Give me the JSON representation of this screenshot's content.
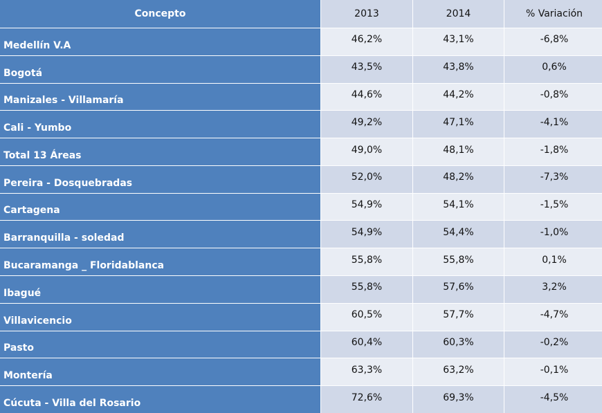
{
  "table": {
    "header": [
      "Concepto",
      "2013",
      "2014",
      "% Variación"
    ],
    "rows": [
      [
        "Medellín V.A",
        "46,2%",
        "43,1%",
        "-6,8%"
      ],
      [
        "Bogotá",
        "43,5%",
        "43,8%",
        "0,6%"
      ],
      [
        "Manizales - Villamaría",
        "44,6%",
        "44,2%",
        "-0,8%"
      ],
      [
        "Cali - Yumbo",
        "49,2%",
        "47,1%",
        "-4,1%"
      ],
      [
        "Total 13 Áreas",
        "49,0%",
        "48,1%",
        "-1,8%"
      ],
      [
        "Pereira - Dosquebradas",
        "52,0%",
        "48,2%",
        "-7,3%"
      ],
      [
        "Cartagena",
        "54,9%",
        "54,1%",
        "-1,5%"
      ],
      [
        "Barranquilla - soledad",
        "54,9%",
        "54,4%",
        "-1,0%"
      ],
      [
        "Bucaramanga _ Floridablanca",
        "55,8%",
        "55,8%",
        "0,1%"
      ],
      [
        "Ibagué",
        "55,8%",
        "57,6%",
        "3,2%"
      ],
      [
        "Villavicencio",
        "60,5%",
        "57,7%",
        "-4,7%"
      ],
      [
        "Pasto",
        "60,4%",
        "60,3%",
        "-0,2%"
      ],
      [
        "Montería",
        "63,3%",
        "63,2%",
        "-0,1%"
      ],
      [
        "Cúcuta - Villa del Rosario",
        "72,6%",
        "69,3%",
        "-4,5%"
      ]
    ]
  }
}
